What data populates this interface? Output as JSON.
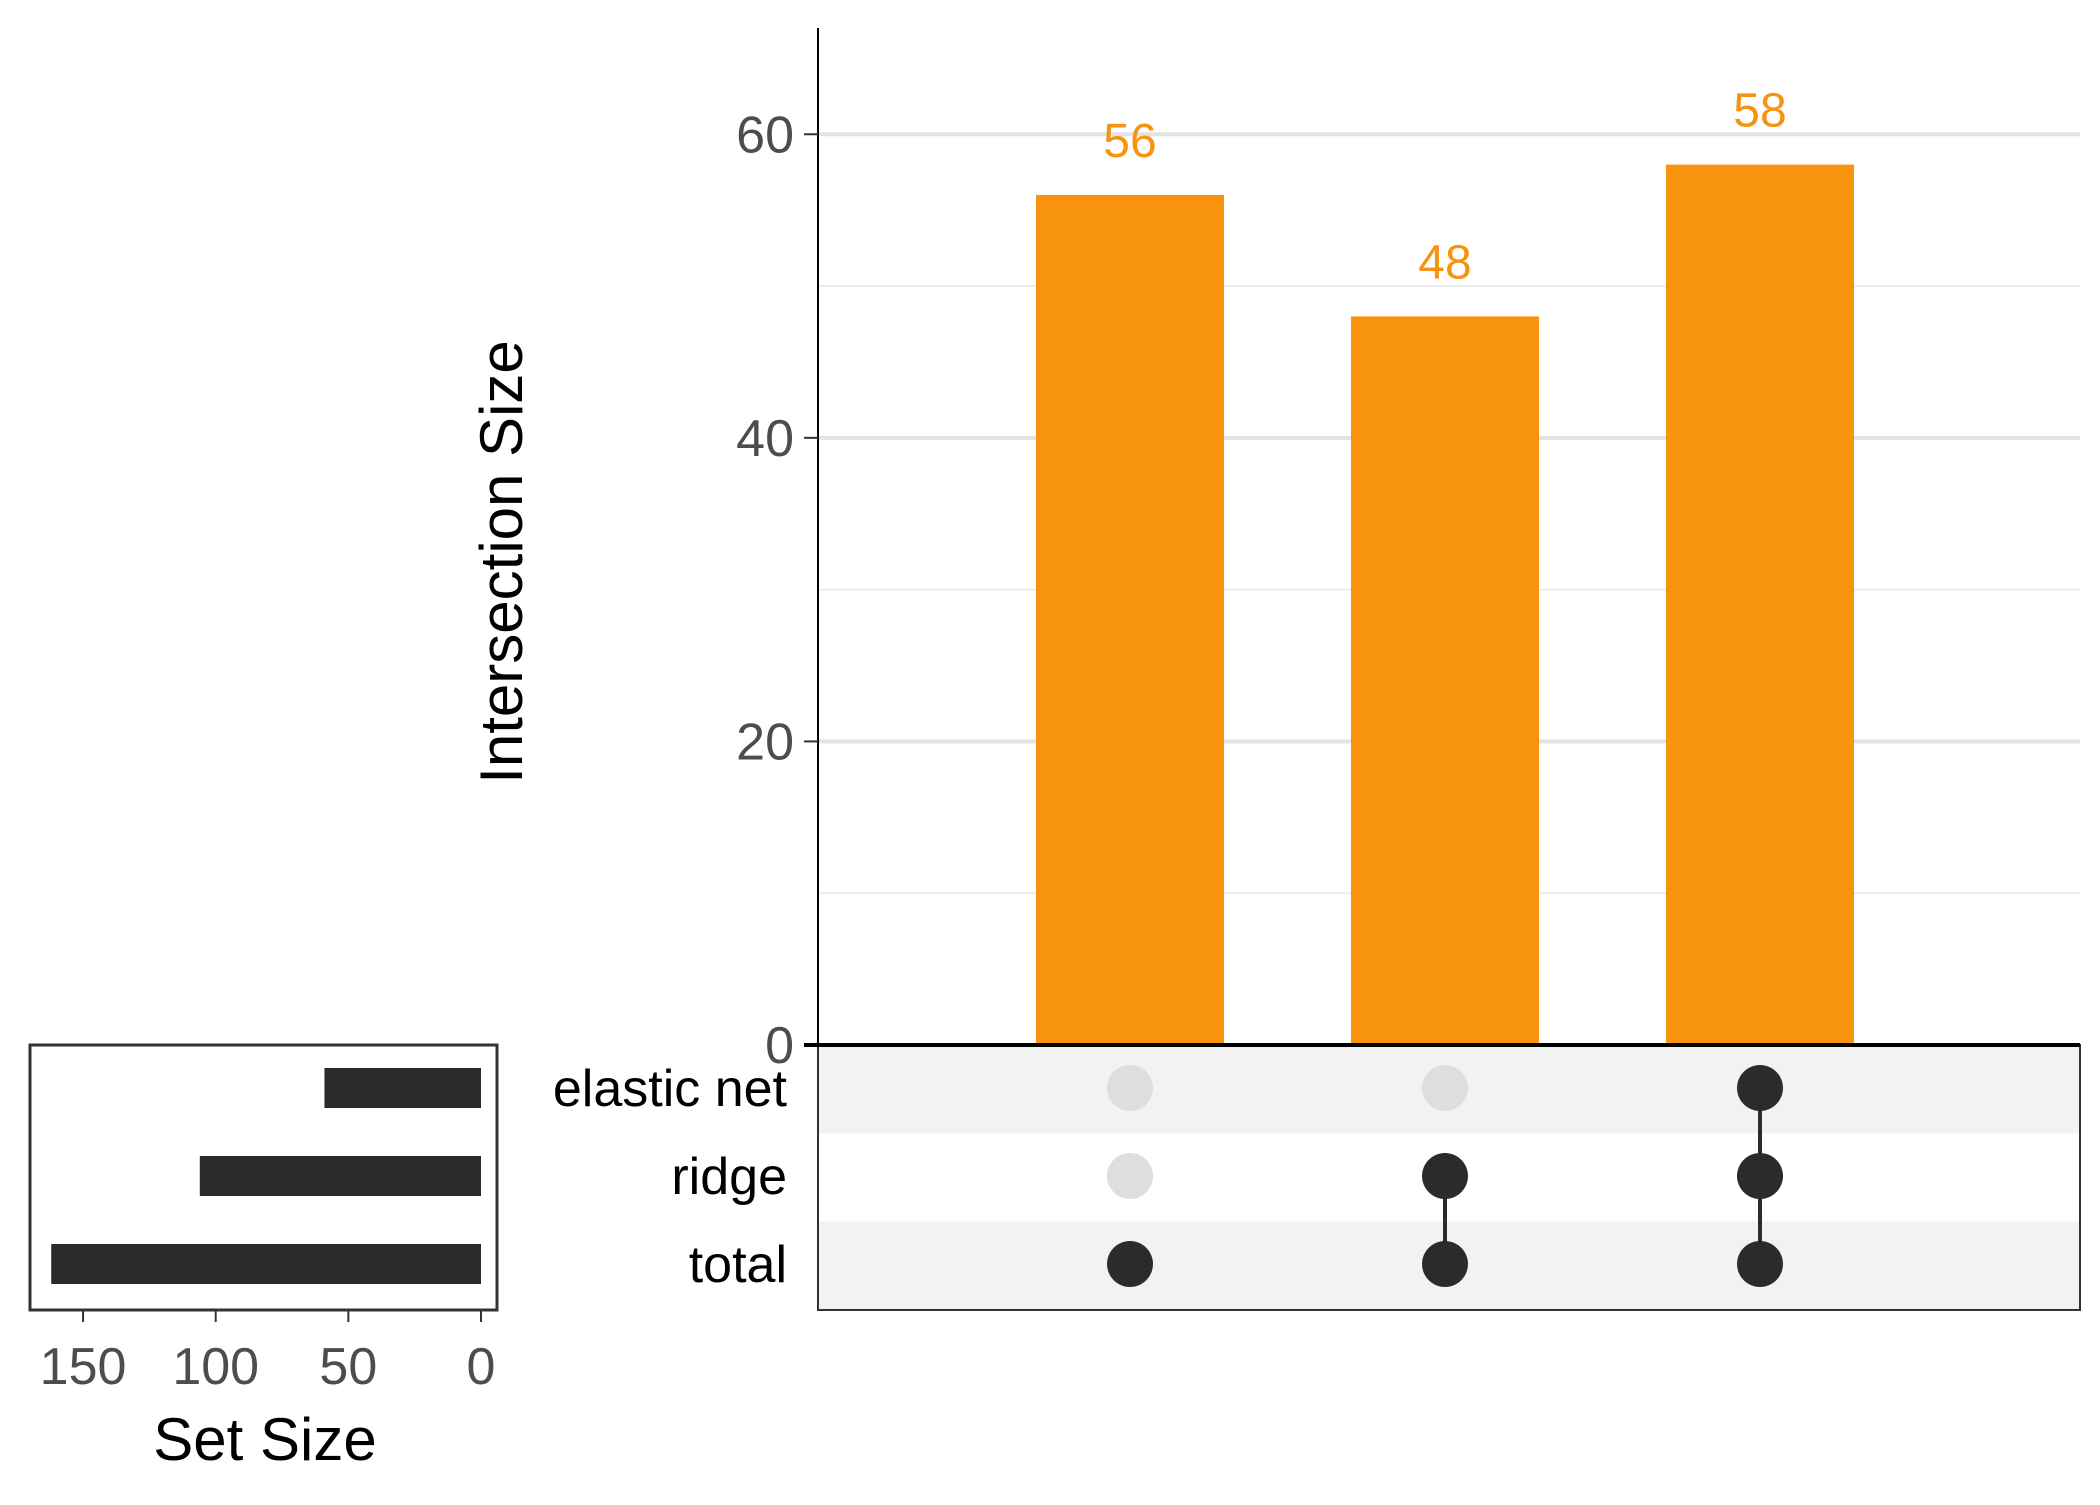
{
  "chart_data": {
    "type": "bar",
    "variant": "upset",
    "intersection_bars": {
      "ylabel": "Intersection Size",
      "ylim": [
        0,
        67
      ],
      "yticks": [
        0,
        20,
        40,
        60
      ],
      "minor_grid": [
        10,
        30,
        50
      ],
      "grid": true,
      "bar_color": "#F8930F",
      "values": [
        56,
        48,
        58
      ],
      "labels": [
        "56",
        "48",
        "58"
      ]
    },
    "matrix": {
      "sets": [
        "elastic net",
        "ridge",
        "total"
      ],
      "membership": [
        [
          "total"
        ],
        [
          "ridge",
          "total"
        ],
        [
          "elastic net",
          "ridge",
          "total"
        ]
      ],
      "dot_color_active": "#2b2b2b",
      "dot_color_inactive": "#dedede",
      "stripe_color": "#f2f2f2"
    },
    "set_size_bars": {
      "xlabel": "Set Size",
      "xlim": [
        170,
        0
      ],
      "xticks": [
        150,
        100,
        50,
        0
      ],
      "bar_color": "#2b2b2b",
      "sets": [
        "elastic net",
        "ridge",
        "total"
      ],
      "values": [
        59,
        106,
        162
      ]
    }
  }
}
